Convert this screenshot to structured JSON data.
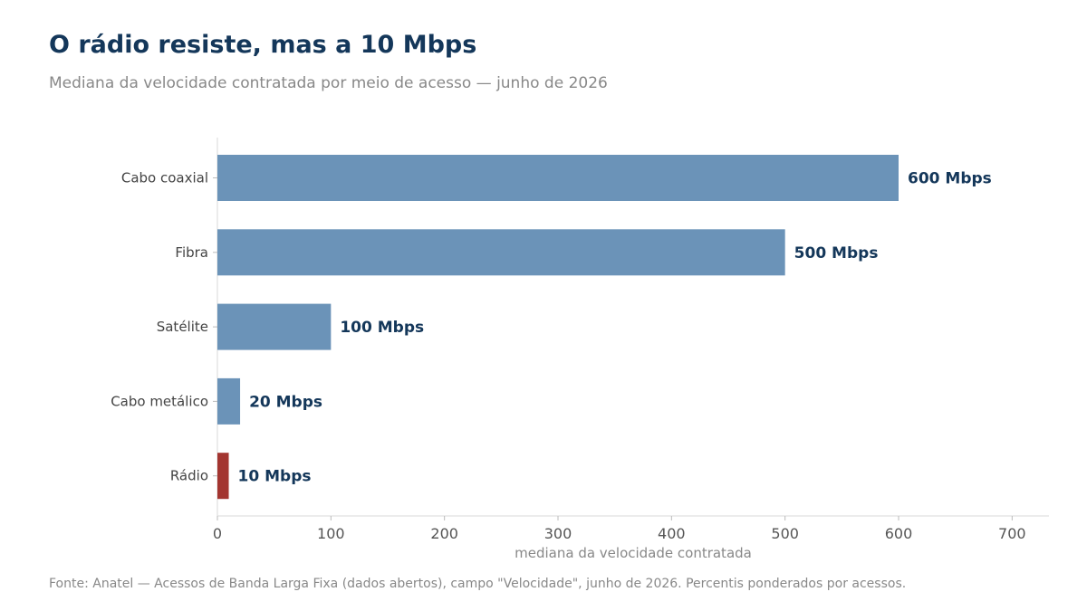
{
  "chart_data": {
    "type": "bar",
    "orientation": "horizontal",
    "title": "O rádio resiste, mas a 10 Mbps",
    "subtitle": "Mediana da velocidade contratada por meio de acesso — junho de 2026",
    "xlabel": "mediana da velocidade contratada",
    "ylabel": "",
    "categories": [
      "Cabo coaxial",
      "Fibra",
      "Satélite",
      "Cabo metálico",
      "Rádio"
    ],
    "values": [
      600,
      500,
      100,
      20,
      10
    ],
    "data_labels": [
      "600 Mbps",
      "500 Mbps",
      "100 Mbps",
      "20 Mbps",
      "10 Mbps"
    ],
    "xlim": [
      0,
      733
    ],
    "xticks": [
      0,
      100,
      200,
      300,
      400,
      500,
      600,
      700
    ],
    "grid": false,
    "bar_color": "#6b93b8",
    "highlight_color": "#a33530",
    "highlight_category": "Rádio"
  },
  "source": "Fonte: Anatel — Acessos de Banda Larga Fixa (dados abertos), campo \"Velocidade\", junho de 2026. Percentis ponderados por acessos."
}
